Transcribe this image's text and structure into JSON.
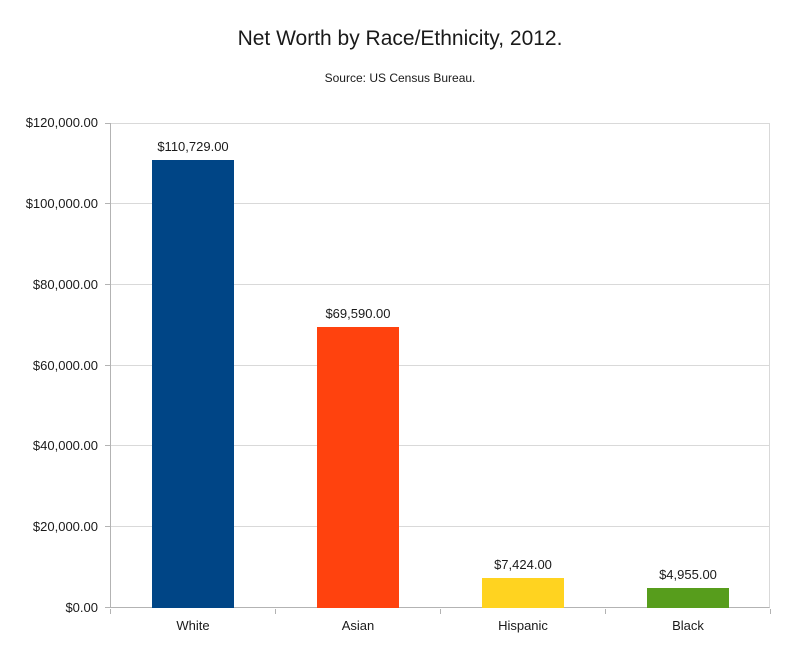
{
  "chart_data": {
    "type": "bar",
    "title": "Net Worth by Race/Ethnicity, 2012.",
    "subtitle": "Source: US Census Bureau.",
    "categories": [
      "White",
      "Asian",
      "Hispanic",
      "Black"
    ],
    "values": [
      110729,
      69590,
      7424,
      4955
    ],
    "value_labels": [
      "$110,729.00",
      "$69,590.00",
      "$7,424.00",
      "$4,955.00"
    ],
    "bar_colors": [
      "#004586",
      "#FF420E",
      "#FFD320",
      "#579D1C"
    ],
    "ylim": [
      0,
      120000
    ],
    "y_tick_step": 20000,
    "y_tick_labels": [
      "$0.00",
      "$20,000.00",
      "$40,000.00",
      "$60,000.00",
      "$80,000.00",
      "$100,000.00",
      "$120,000.00"
    ],
    "xlabel": "",
    "ylabel": "",
    "grid": "horizontal",
    "legend": "none",
    "colors": {
      "grid": "#d9d9d9",
      "axis": "#b3b3b3",
      "text": "#1a1a1a",
      "background": "#ffffff"
    }
  }
}
